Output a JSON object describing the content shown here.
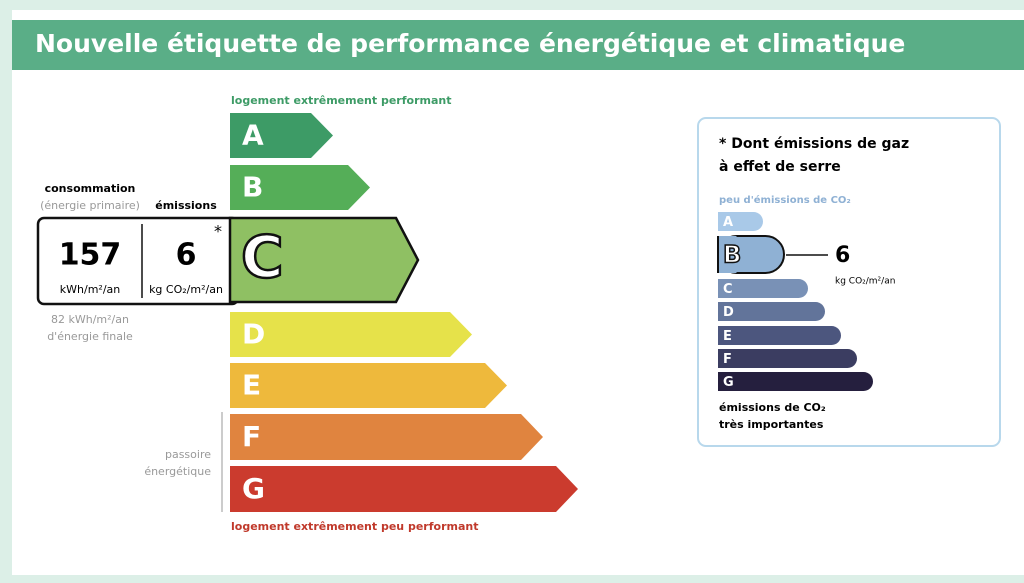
{
  "header": {
    "title": "Nouvelle étiquette de performance énergétique et climatique"
  },
  "scale": {
    "top_label": "logement extrêmement performant",
    "bottom_label": "logement extrêmement peu performant",
    "classes": [
      "A",
      "B",
      "C",
      "D",
      "E",
      "F",
      "G"
    ],
    "note": [
      "passoire",
      "énergétique"
    ]
  },
  "consumption": {
    "label": "consommation",
    "sublabel": "(énergie primaire)",
    "value": "157",
    "unit": "kWh/m²/an",
    "final_energy": "82 kWh/m²/an",
    "final_energy_label": "d'énergie finale"
  },
  "emissions": {
    "label": "émissions",
    "value": "6",
    "unit": "kg CO₂/m²/an",
    "asterisk": "*"
  },
  "ghg_panel": {
    "title": [
      "* Dont émissions de gaz",
      "à effet de serre"
    ],
    "top_label": "peu d'émissions de CO₂",
    "classes": [
      "A",
      "B",
      "C",
      "D",
      "E",
      "F",
      "G"
    ],
    "value": "6",
    "unit": "kg CO₂/m²/an",
    "bottom_label": [
      "émissions de CO₂",
      "très importantes"
    ]
  }
}
